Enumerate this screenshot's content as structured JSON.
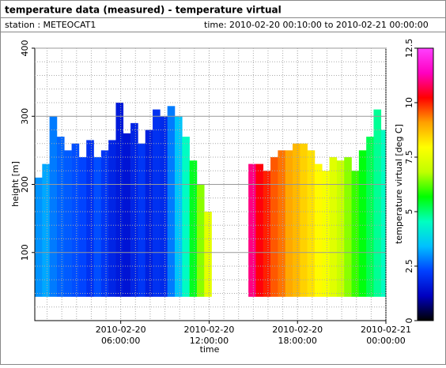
{
  "chart_data": {
    "type": "profile",
    "title": "temperature data (measured) - temperature virtual",
    "station": "station : METEOCAT1",
    "period": "time: 2010-02-20 00:10:00 to 2010-02-21 00:00:00",
    "x_label": "time",
    "y_label": "height [m]",
    "colorbar_label": "temperature virtual [deg C]",
    "x": [
      "2010-02-20 00:10",
      "2010-02-20 00:40",
      "2010-02-20 01:10",
      "2010-02-20 01:40",
      "2010-02-20 02:10",
      "2010-02-20 02:40",
      "2010-02-20 03:10",
      "2010-02-20 03:40",
      "2010-02-20 04:10",
      "2010-02-20 04:40",
      "2010-02-20 05:10",
      "2010-02-20 05:40",
      "2010-02-20 06:10",
      "2010-02-20 06:40",
      "2010-02-20 07:10",
      "2010-02-20 07:40",
      "2010-02-20 08:10",
      "2010-02-20 08:40",
      "2010-02-20 09:10",
      "2010-02-20 09:40",
      "2010-02-20 10:10",
      "2010-02-20 10:40",
      "2010-02-20 11:10",
      "2010-02-20 11:40",
      "2010-02-20 12:10",
      "2010-02-20 12:40",
      "2010-02-20 13:10",
      "2010-02-20 13:40",
      "2010-02-20 14:10",
      "2010-02-20 14:40",
      "2010-02-20 15:10",
      "2010-02-20 15:40",
      "2010-02-20 16:10",
      "2010-02-20 16:40",
      "2010-02-20 17:10",
      "2010-02-20 17:40",
      "2010-02-20 18:10",
      "2010-02-20 18:40",
      "2010-02-20 19:10",
      "2010-02-20 19:40",
      "2010-02-20 20:10",
      "2010-02-20 20:40",
      "2010-02-20 21:10",
      "2010-02-20 21:40",
      "2010-02-20 22:10",
      "2010-02-20 22:40",
      "2010-02-20 23:10",
      "2010-02-20 23:40"
    ],
    "top_height": [
      210,
      230,
      300,
      270,
      250,
      260,
      240,
      265,
      240,
      250,
      265,
      320,
      275,
      290,
      260,
      280,
      310,
      300,
      315,
      300,
      270,
      235,
      200,
      160,
      null,
      null,
      null,
      null,
      null,
      230,
      230,
      220,
      240,
      250,
      250,
      260,
      260,
      250,
      230,
      220,
      240,
      235,
      240,
      220,
      250,
      270,
      310,
      280
    ],
    "temperature": [
      3.0,
      3.2,
      2.8,
      2.6,
      2.5,
      2.4,
      2.3,
      2.0,
      2.4,
      2.1,
      1.8,
      1.6,
      1.5,
      1.8,
      2.1,
      1.7,
      2.0,
      1.9,
      2.8,
      3.5,
      4.5,
      5.5,
      6.5,
      7.5,
      null,
      null,
      null,
      null,
      null,
      11.0,
      10.3,
      10.0,
      9.6,
      9.4,
      9.0,
      8.8,
      8.5,
      8.3,
      8.0,
      7.8,
      7.4,
      7.0,
      6.5,
      6.0,
      5.6,
      5.2,
      4.8,
      4.5
    ],
    "lowest_height": 35,
    "step_minutes": 30,
    "xlim": [
      "2010-02-20 00:10",
      "2010-02-21 00:00"
    ],
    "xticks": [
      "2010-02-20 06:00:00",
      "2010-02-20 12:00:00",
      "2010-02-20 18:00:00",
      "2010-02-21 00:00:00"
    ],
    "ylim": [
      0,
      400
    ],
    "yticks": [
      100,
      200,
      300,
      400
    ],
    "clim": [
      0,
      12.5
    ],
    "cticks": [
      0,
      2.5,
      5,
      7.5,
      10,
      12.5
    ],
    "colormap": [
      "#000000",
      "#0000c0",
      "#0040ff",
      "#00c0ff",
      "#00ffc0",
      "#00ff00",
      "#c0ff00",
      "#ffff00",
      "#ffa000",
      "#ff0000",
      "#ff00c0",
      "#ff40ff"
    ],
    "grid": true
  }
}
